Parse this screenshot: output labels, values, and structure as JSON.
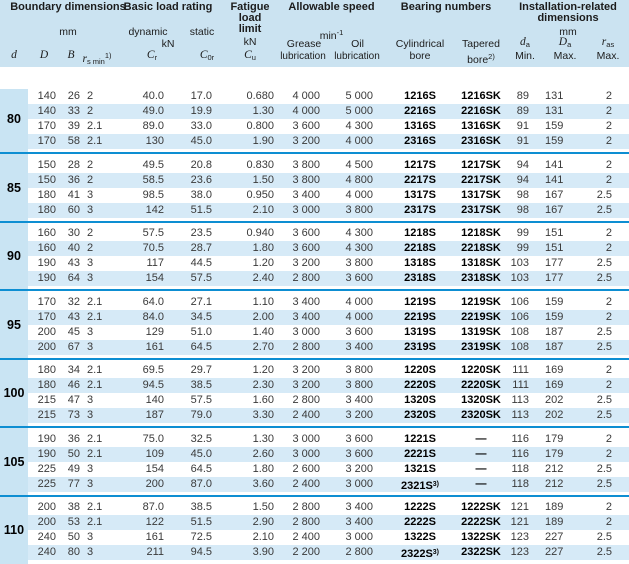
{
  "header": {
    "boundary_title": "Boundary dimensions",
    "boundary_unit": "mm",
    "col_d": "d",
    "col_D": "D",
    "col_B": "B",
    "col_rs_base": "r",
    "col_rs_sub": "s min",
    "col_rs_sup": "1)",
    "load_title": "Basic load rating",
    "load_dynamic": "dynamic",
    "load_static": "static",
    "load_unit": "kN",
    "col_cr_base": "C",
    "col_cr_sub": "r",
    "col_c0r_base": "C",
    "col_c0r_sub": "0r",
    "fatigue_line1": "Fatigue",
    "fatigue_line2": "load",
    "fatigue_line3": "limit",
    "fatigue_unit": "kN",
    "col_cu_base": "C",
    "col_cu_sub": "u",
    "speed_title": "Allowable speed",
    "speed_unit_base": "min",
    "speed_unit_sup": "-1",
    "speed_grease_line1": "Grease",
    "speed_grease_line2": "lubrication",
    "speed_oil_line1": "Oil",
    "speed_oil_line2": "lubrication",
    "bearing_title": "Bearing numbers",
    "bearing_cyl_line1": "Cylindrical",
    "bearing_cyl_line2": "bore",
    "bearing_tap_line1": "Tapered",
    "bearing_tap_line2": "bore",
    "bearing_tap_sup": "2)",
    "install_title_line1": "Installation-related",
    "install_title_line2": "dimensions",
    "install_unit": "mm",
    "col_da_base": "d",
    "col_da_sub": "a",
    "col_da_label": "Min.",
    "col_Da_base": "D",
    "col_Da_sub": "a",
    "col_Da_label": "Max.",
    "col_ras_base": "r",
    "col_ras_sub": "as",
    "col_ras_label": "Max."
  },
  "groups": [
    {
      "d": "80",
      "rows": [
        [
          "140",
          "26",
          "2",
          "40.0",
          "17.0",
          "0.680",
          "4 000",
          "5 000",
          "1216S",
          "",
          "1216SK",
          "89",
          "131",
          "2"
        ],
        [
          "140",
          "33",
          "2",
          "49.0",
          "19.9",
          "1.30",
          "4 000",
          "5 000",
          "2216S",
          "",
          "2216SK",
          "89",
          "131",
          "2"
        ],
        [
          "170",
          "39",
          "2.1",
          "89.0",
          "33.0",
          "0.800",
          "3 600",
          "4 300",
          "1316S",
          "",
          "1316SK",
          "91",
          "159",
          "2"
        ],
        [
          "170",
          "58",
          "2.1",
          "130",
          "45.0",
          "1.90",
          "3 200",
          "4 000",
          "2316S",
          "",
          "2316SK",
          "91",
          "159",
          "2"
        ]
      ]
    },
    {
      "d": "85",
      "rows": [
        [
          "150",
          "28",
          "2",
          "49.5",
          "20.8",
          "0.830",
          "3 800",
          "4 500",
          "1217S",
          "",
          "1217SK",
          "94",
          "141",
          "2"
        ],
        [
          "150",
          "36",
          "2",
          "58.5",
          "23.6",
          "1.50",
          "3 800",
          "4 800",
          "2217S",
          "",
          "2217SK",
          "94",
          "141",
          "2"
        ],
        [
          "180",
          "41",
          "3",
          "98.5",
          "38.0",
          "0.950",
          "3 400",
          "4 000",
          "1317S",
          "",
          "1317SK",
          "98",
          "167",
          "2.5"
        ],
        [
          "180",
          "60",
          "3",
          "142",
          "51.5",
          "2.10",
          "3 000",
          "3 800",
          "2317S",
          "",
          "2317SK",
          "98",
          "167",
          "2.5"
        ]
      ]
    },
    {
      "d": "90",
      "rows": [
        [
          "160",
          "30",
          "2",
          "57.5",
          "23.5",
          "0.940",
          "3 600",
          "4 300",
          "1218S",
          "",
          "1218SK",
          "99",
          "151",
          "2"
        ],
        [
          "160",
          "40",
          "2",
          "70.5",
          "28.7",
          "1.80",
          "3 600",
          "4 300",
          "2218S",
          "",
          "2218SK",
          "99",
          "151",
          "2"
        ],
        [
          "190",
          "43",
          "3",
          "117",
          "44.5",
          "1.20",
          "3 200",
          "3 800",
          "1318S",
          "",
          "1318SK",
          "103",
          "177",
          "2.5"
        ],
        [
          "190",
          "64",
          "3",
          "154",
          "57.5",
          "2.40",
          "2 800",
          "3 600",
          "2318S",
          "",
          "2318SK",
          "103",
          "177",
          "2.5"
        ]
      ]
    },
    {
      "d": "95",
      "rows": [
        [
          "170",
          "32",
          "2.1",
          "64.0",
          "27.1",
          "1.10",
          "3 400",
          "4 000",
          "1219S",
          "",
          "1219SK",
          "106",
          "159",
          "2"
        ],
        [
          "170",
          "43",
          "2.1",
          "84.0",
          "34.5",
          "2.00",
          "3 400",
          "4 000",
          "2219S",
          "",
          "2219SK",
          "106",
          "159",
          "2"
        ],
        [
          "200",
          "45",
          "3",
          "129",
          "51.0",
          "1.40",
          "3 000",
          "3 600",
          "1319S",
          "",
          "1319SK",
          "108",
          "187",
          "2.5"
        ],
        [
          "200",
          "67",
          "3",
          "161",
          "64.5",
          "2.70",
          "2 800",
          "3 400",
          "2319S",
          "",
          "2319SK",
          "108",
          "187",
          "2.5"
        ]
      ]
    },
    {
      "d": "100",
      "rows": [
        [
          "180",
          "34",
          "2.1",
          "69.5",
          "29.7",
          "1.20",
          "3 200",
          "3 800",
          "1220S",
          "",
          "1220SK",
          "111",
          "169",
          "2"
        ],
        [
          "180",
          "46",
          "2.1",
          "94.5",
          "38.5",
          "2.30",
          "3 200",
          "3 800",
          "2220S",
          "",
          "2220SK",
          "111",
          "169",
          "2"
        ],
        [
          "215",
          "47",
          "3",
          "140",
          "57.5",
          "1.60",
          "2 800",
          "3 400",
          "1320S",
          "",
          "1320SK",
          "113",
          "202",
          "2.5"
        ],
        [
          "215",
          "73",
          "3",
          "187",
          "79.0",
          "3.30",
          "2 400",
          "3 200",
          "2320S",
          "",
          "2320SK",
          "113",
          "202",
          "2.5"
        ]
      ]
    },
    {
      "d": "105",
      "rows": [
        [
          "190",
          "36",
          "2.1",
          "75.0",
          "32.5",
          "1.30",
          "3 000",
          "3 600",
          "1221S",
          "",
          "—",
          "116",
          "179",
          "2"
        ],
        [
          "190",
          "50",
          "2.1",
          "109",
          "45.0",
          "2.60",
          "3 000",
          "3 600",
          "2221S",
          "",
          "—",
          "116",
          "179",
          "2"
        ],
        [
          "225",
          "49",
          "3",
          "154",
          "64.5",
          "1.80",
          "2 600",
          "3 200",
          "1321S",
          "",
          "—",
          "118",
          "212",
          "2.5"
        ],
        [
          "225",
          "77",
          "3",
          "200",
          "87.0",
          "3.60",
          "2 400",
          "3 000",
          "2321S",
          "3)",
          "—",
          "118",
          "212",
          "2.5"
        ]
      ]
    },
    {
      "d": "110",
      "rows": [
        [
          "200",
          "38",
          "2.1",
          "87.0",
          "38.5",
          "1.50",
          "2 800",
          "3 400",
          "1222S",
          "",
          "1222SK",
          "121",
          "189",
          "2"
        ],
        [
          "200",
          "53",
          "2.1",
          "122",
          "51.5",
          "2.90",
          "2 800",
          "3 400",
          "2222S",
          "",
          "2222SK",
          "121",
          "189",
          "2"
        ],
        [
          "240",
          "50",
          "3",
          "161",
          "72.5",
          "2.10",
          "2 400",
          "3 000",
          "1322S",
          "",
          "1322SK",
          "123",
          "227",
          "2.5"
        ],
        [
          "240",
          "80",
          "3",
          "211",
          "94.5",
          "3.90",
          "2 200",
          "2 800",
          "2322S",
          "3)",
          "2322SK",
          "123",
          "227",
          "2.5"
        ]
      ]
    }
  ],
  "colors": {
    "header_bg": "#cbe3f1",
    "stripe_bg": "#d6eaf7",
    "d_column_bg": "#c9e4f3",
    "separator_line": "#0d8ed2"
  }
}
